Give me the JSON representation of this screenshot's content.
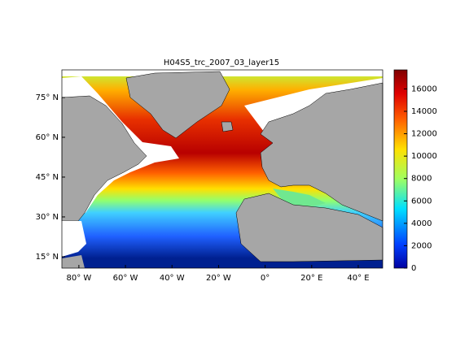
{
  "chart_data": {
    "type": "map",
    "title": "H04S5_trc_2007_03_layer15",
    "xlim": [
      -87.3,
      50.5
    ],
    "xticks": [
      {
        "value": -80,
        "label": "80° W"
      },
      {
        "value": -60,
        "label": "60° W"
      },
      {
        "value": -40,
        "label": "40° W"
      },
      {
        "value": -20,
        "label": "20° W"
      },
      {
        "value": 0,
        "label": "0°"
      },
      {
        "value": 20,
        "label": "20° E"
      },
      {
        "value": 40,
        "label": "40° E"
      }
    ],
    "ylim": [
      10.7,
      85.4
    ],
    "yticks": [
      {
        "value": 15,
        "label": "15° N"
      },
      {
        "value": 30,
        "label": "30° N"
      },
      {
        "value": 45,
        "label": "45° N"
      },
      {
        "value": 60,
        "label": "60° N"
      },
      {
        "value": 75,
        "label": "75° N"
      }
    ],
    "colorbar": {
      "lim": [
        0,
        17700
      ],
      "ticks": [
        0,
        2000,
        4000,
        6000,
        8000,
        10000,
        12000,
        14000,
        16000
      ]
    }
  }
}
